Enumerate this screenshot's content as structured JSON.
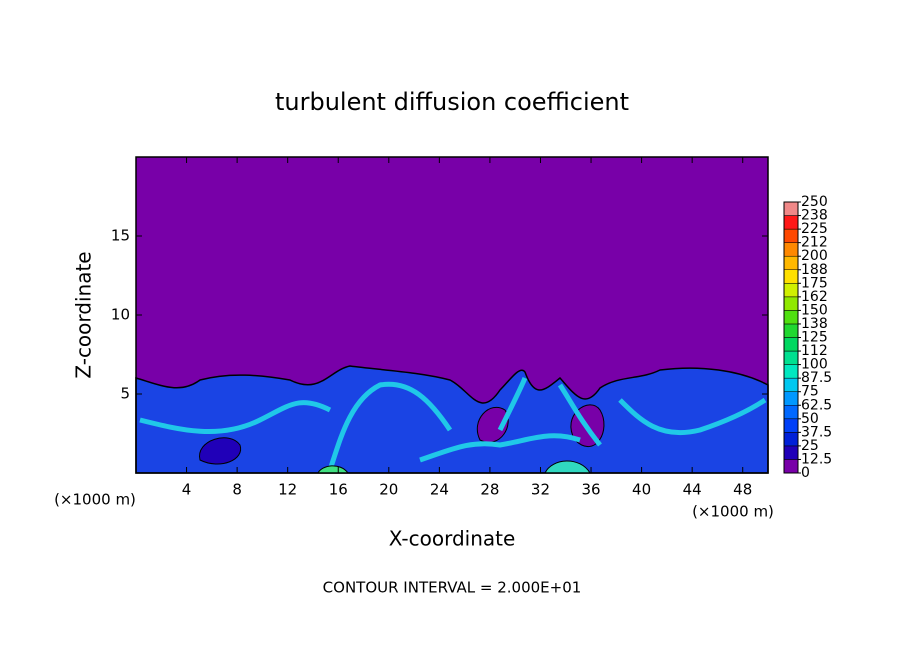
{
  "chart_data": {
    "type": "contour",
    "title": "turbulent diffusion coefficient",
    "x_label": "X-coordinate",
    "y_label": "Z-coordinate",
    "x_unit_label": "(×1000 m)",
    "footer": "CONTOUR INTERVAL = 2.000E+01",
    "xlim": [
      0,
      50
    ],
    "xticks": [
      4,
      8,
      12,
      16,
      20,
      24,
      28,
      32,
      36,
      40,
      44,
      48
    ],
    "ylim": [
      0,
      20
    ],
    "yticks": [
      5,
      10,
      15
    ],
    "colorbar_ticks": [
      0,
      12.5,
      25,
      37.5,
      50,
      62.5,
      75,
      87.5,
      100,
      {
        "value": 112.5,
        "label": "112"
      },
      125,
      {
        "value": 137.5,
        "label": "138"
      },
      150,
      {
        "value": 162.5,
        "label": "162"
      },
      175,
      {
        "value": 187.5,
        "label": "188"
      },
      200,
      {
        "value": 212.5,
        "label": "212"
      },
      225,
      {
        "value": 237.5,
        "label": "238"
      },
      250
    ],
    "colorbar_colors": [
      "#7800a8",
      "#2000b8",
      "#0020d8",
      "#0040f8",
      "#0068ff",
      "#0098ff",
      "#00c8f0",
      "#00e8c0",
      "#00e090",
      "#00d860",
      "#20d830",
      "#50e010",
      "#90e800",
      "#d0f000",
      "#ffe000",
      "#ffb800",
      "#ff8800",
      "#ff4800",
      "#ff1818",
      "#f08888"
    ]
  }
}
